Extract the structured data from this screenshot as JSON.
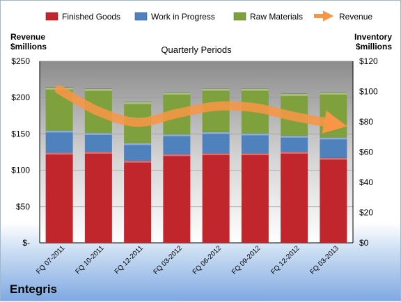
{
  "company": "Entegris",
  "chart_data": {
    "type": "bar",
    "stacked": true,
    "title": "Quarterly Periods",
    "left_axis": {
      "label_line1": "Revenue",
      "label_line2": "$millions",
      "ticks": [
        "$-",
        "$50",
        "$100",
        "$150",
        "$200",
        "$250"
      ],
      "range": [
        0,
        250
      ]
    },
    "right_axis": {
      "label_line1": "Inventory",
      "label_line2": "$millions",
      "ticks": [
        "$0",
        "$20",
        "$40",
        "$60",
        "$80",
        "$100",
        "$120"
      ],
      "range": [
        0,
        120
      ]
    },
    "categories": [
      "FQ 07-2011",
      "FQ 10-2011",
      "FQ 12-2011",
      "FQ 03-2012",
      "FQ 06-2012",
      "FQ 09-2012",
      "FQ 12-2012",
      "FQ 03-2013"
    ],
    "series": [
      {
        "name": "Finished Goods",
        "axis": "right",
        "color": "#c0262c",
        "values": [
          59.7,
          60.3,
          54.4,
          58.7,
          59.3,
          59.3,
          60.3,
          56.3
        ]
      },
      {
        "name": "Work in Progress",
        "axis": "right",
        "color": "#4f81bd",
        "values": [
          14.6,
          12.4,
          11.6,
          13.1,
          14.0,
          13.1,
          10.6,
          13.4
        ]
      },
      {
        "name": "Raw Materials",
        "axis": "right",
        "color": "#7ea13d",
        "values": [
          28.4,
          29.1,
          27.1,
          27.6,
          28.6,
          29.5,
          27.6,
          29.7
        ]
      },
      {
        "name": "Revenue",
        "axis": "left",
        "type": "line",
        "color": "#f79646",
        "values": [
          211,
          181,
          166,
          178,
          188,
          186,
          174,
          164
        ]
      }
    ]
  }
}
